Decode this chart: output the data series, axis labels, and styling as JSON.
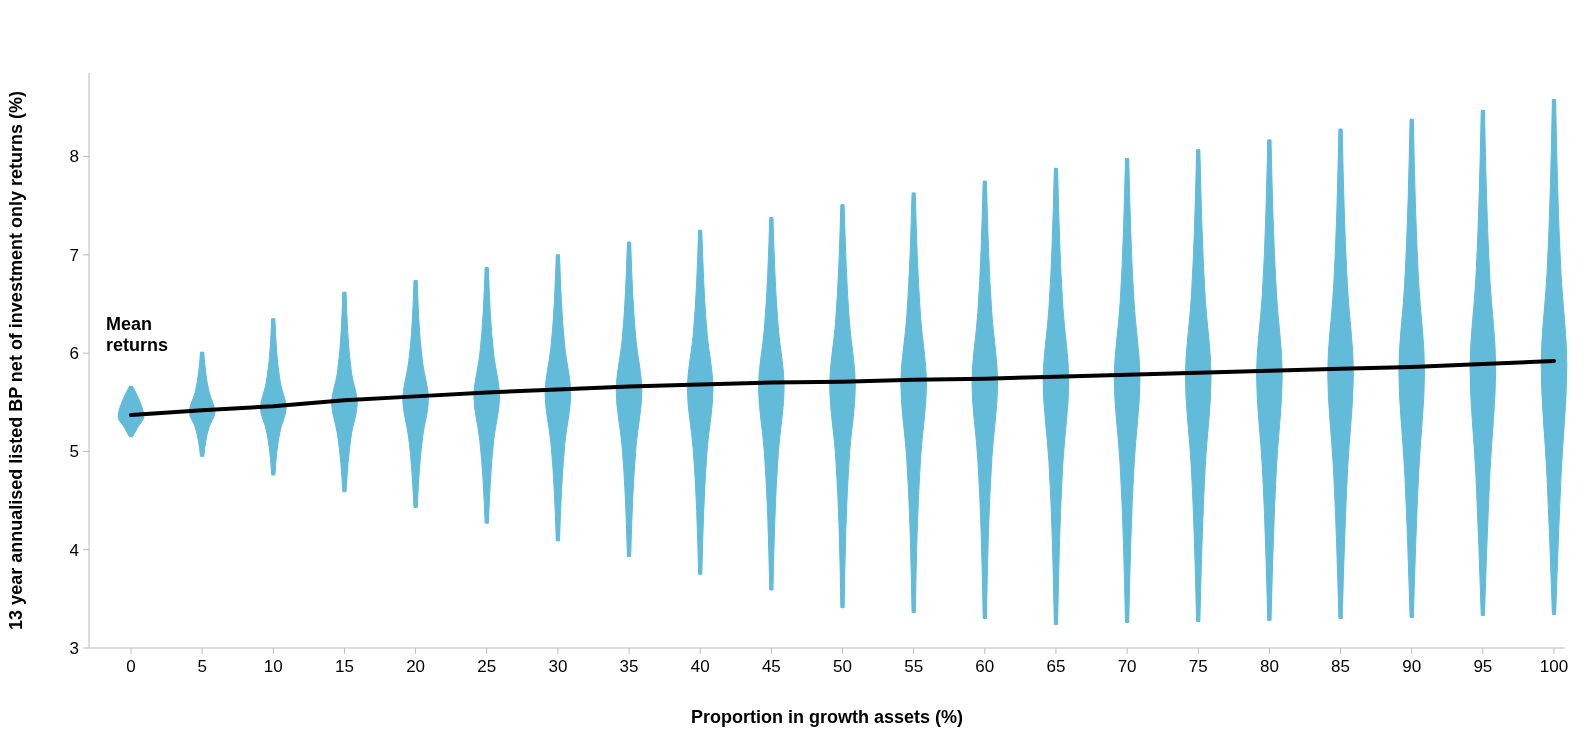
{
  "chart_data": {
    "type": "box",
    "xlabel": "Proportion in growth assets (%)",
    "ylabel": "13 year annualised listed BP net of investment only returns (%)",
    "categories": [
      "0",
      "5",
      "10",
      "15",
      "20",
      "25",
      "30",
      "35",
      "40",
      "45",
      "50",
      "55",
      "60",
      "65",
      "70",
      "75",
      "80",
      "85",
      "90",
      "95",
      "100"
    ],
    "ylim": [
      3,
      8.85
    ],
    "yticks": [
      3,
      4,
      5,
      6,
      7,
      8
    ],
    "grid": false,
    "annotations": [
      "Mean returns"
    ],
    "series": [
      {
        "color": "#62bbd9",
        "boxes": [
          {
            "low": 5.15,
            "q1": 5.25,
            "median": 5.35,
            "q3": 5.55,
            "high": 5.66
          },
          {
            "low": 4.95,
            "q1": 5.25,
            "median": 5.4,
            "q3": 5.6,
            "high": 6.01
          },
          {
            "low": 4.76,
            "q1": 5.22,
            "median": 5.44,
            "q3": 5.7,
            "high": 6.35
          },
          {
            "low": 4.59,
            "q1": 5.18,
            "median": 5.49,
            "q3": 5.8,
            "high": 6.62
          },
          {
            "low": 4.43,
            "q1": 5.15,
            "median": 5.53,
            "q3": 5.9,
            "high": 6.74
          },
          {
            "low": 4.27,
            "q1": 5.12,
            "median": 5.56,
            "q3": 5.98,
            "high": 6.87
          },
          {
            "low": 4.09,
            "q1": 5.09,
            "median": 5.59,
            "q3": 6.05,
            "high": 7.0
          },
          {
            "low": 3.93,
            "q1": 5.06,
            "median": 5.62,
            "q3": 6.12,
            "high": 7.13
          },
          {
            "low": 3.75,
            "q1": 5.03,
            "median": 5.64,
            "q3": 6.18,
            "high": 7.25
          },
          {
            "low": 3.59,
            "q1": 5.0,
            "median": 5.66,
            "q3": 6.24,
            "high": 7.38
          },
          {
            "low": 3.41,
            "q1": 4.98,
            "median": 5.67,
            "q3": 6.3,
            "high": 7.51
          },
          {
            "low": 3.36,
            "q1": 4.95,
            "median": 5.69,
            "q3": 6.35,
            "high": 7.63
          },
          {
            "low": 3.3,
            "q1": 4.93,
            "median": 5.7,
            "q3": 6.4,
            "high": 7.75
          },
          {
            "low": 3.24,
            "q1": 4.9,
            "median": 5.72,
            "q3": 6.45,
            "high": 7.88
          },
          {
            "low": 3.26,
            "q1": 4.88,
            "median": 5.74,
            "q3": 6.5,
            "high": 7.98
          },
          {
            "low": 3.27,
            "q1": 4.86,
            "median": 5.76,
            "q3": 6.55,
            "high": 8.07
          },
          {
            "low": 3.28,
            "q1": 4.84,
            "median": 5.78,
            "q3": 6.6,
            "high": 8.17
          },
          {
            "low": 3.3,
            "q1": 4.82,
            "median": 5.8,
            "q3": 6.65,
            "high": 8.28
          },
          {
            "low": 3.31,
            "q1": 4.8,
            "median": 5.82,
            "q3": 6.7,
            "high": 8.38
          },
          {
            "low": 3.33,
            "q1": 4.78,
            "median": 5.85,
            "q3": 6.75,
            "high": 8.47
          },
          {
            "low": 3.34,
            "q1": 4.76,
            "median": 5.88,
            "q3": 6.8,
            "high": 8.58
          }
        ]
      },
      {
        "type": "line",
        "color": "#000000",
        "values": [
          5.37,
          5.42,
          5.46,
          5.52,
          5.56,
          5.6,
          5.63,
          5.66,
          5.68,
          5.7,
          5.71,
          5.73,
          5.74,
          5.76,
          5.78,
          5.8,
          5.82,
          5.84,
          5.86,
          5.89,
          5.92
        ]
      }
    ]
  }
}
